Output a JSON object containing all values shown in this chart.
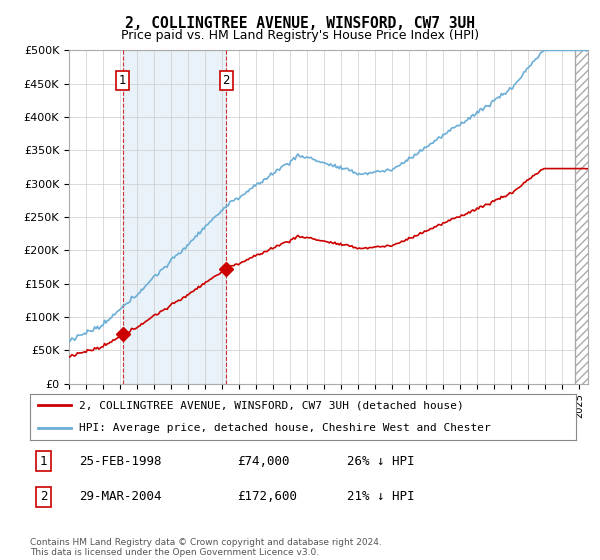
{
  "title": "2, COLLINGTREE AVENUE, WINSFORD, CW7 3UH",
  "subtitle": "Price paid vs. HM Land Registry's House Price Index (HPI)",
  "ylim": [
    0,
    500000
  ],
  "yticks": [
    0,
    50000,
    100000,
    150000,
    200000,
    250000,
    300000,
    350000,
    400000,
    450000,
    500000
  ],
  "ytick_labels": [
    "£0",
    "£50K",
    "£100K",
    "£150K",
    "£200K",
    "£250K",
    "£300K",
    "£350K",
    "£400K",
    "£450K",
    "£500K"
  ],
  "xlim_start": 1995.0,
  "xlim_end": 2025.5,
  "hpi_color": "#6baed6",
  "price_color": "#cc0000",
  "purchase1_date": 1998.145,
  "purchase1_price": 74000,
  "purchase2_date": 2004.24,
  "purchase2_price": 172600,
  "legend1": "2, COLLINGTREE AVENUE, WINSFORD, CW7 3UH (detached house)",
  "legend2": "HPI: Average price, detached house, Cheshire West and Chester",
  "table_row1_label": "1",
  "table_row1_date": "25-FEB-1998",
  "table_row1_price": "£74,000",
  "table_row1_hpi": "26% ↓ HPI",
  "table_row2_label": "2",
  "table_row2_date": "29-MAR-2004",
  "table_row2_price": "£172,600",
  "table_row2_hpi": "21% ↓ HPI",
  "footer": "Contains HM Land Registry data © Crown copyright and database right 2024.\nThis data is licensed under the Open Government Licence v3.0.",
  "bg_color": "#ffffff",
  "grid_color": "#cccccc"
}
